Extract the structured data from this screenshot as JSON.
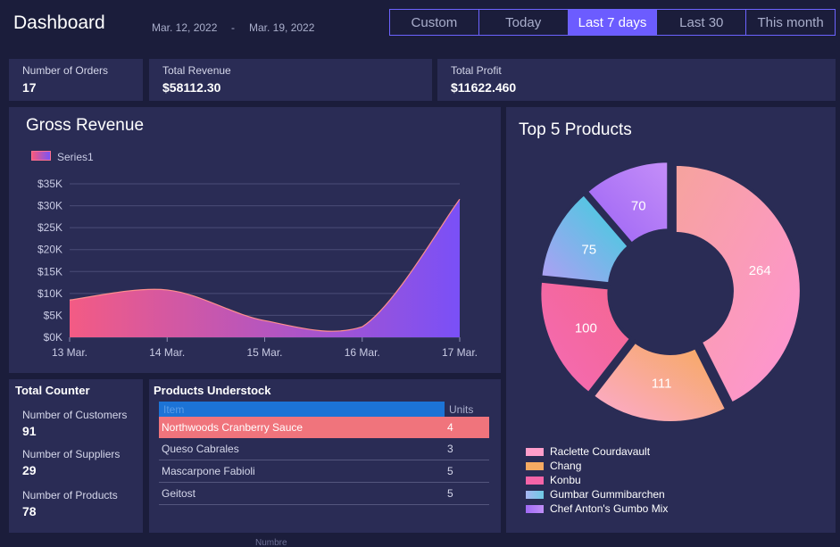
{
  "header": {
    "title": "Dashboard",
    "date_from": "Mar. 12, 2022",
    "date_sep": "-",
    "date_to": "Mar. 19, 2022",
    "ranges": [
      {
        "label": "Custom",
        "active": false
      },
      {
        "label": "Today",
        "active": false
      },
      {
        "label": "Last 7 days",
        "active": true
      },
      {
        "label": "Last 30",
        "active": false
      },
      {
        "label": "This month",
        "active": false
      }
    ]
  },
  "kpis": {
    "orders": {
      "label": "Number of Orders",
      "value": "17"
    },
    "revenue": {
      "label": "Total Revenue",
      "value": "$58112.30"
    },
    "profit": {
      "label": "Total Profit",
      "value": "$11622.460"
    }
  },
  "gross_revenue": {
    "title": "Gross Revenue",
    "chart_data": {
      "type": "area",
      "series": [
        {
          "name": "Series1",
          "values": [
            8500,
            10800,
            3800,
            2400,
            31500
          ]
        }
      ],
      "categories": [
        "13 Mar.",
        "14 Mar.",
        "15 Mar.",
        "16 Mar.",
        "17 Mar."
      ],
      "y_ticks": [
        "$0K",
        "$5K",
        "$10K",
        "$15K",
        "$20K",
        "$25K",
        "$30K",
        "$35K"
      ],
      "ylim": [
        0,
        35000
      ],
      "legend": "top-left",
      "grid": true
    }
  },
  "top_products": {
    "title": "Top 5 Products",
    "chart_data": {
      "type": "pie",
      "categories": [
        "Raclette Courdavault",
        "Chang",
        "Konbu",
        "Gumbar Gummibarchen",
        "Chef Anton's Gumbo Mix"
      ],
      "values": [
        264,
        111,
        100,
        75,
        70
      ],
      "legend": "bottom-left"
    }
  },
  "total_counter": {
    "title": "Total Counter",
    "items": [
      {
        "label": "Number of Customers",
        "value": "91"
      },
      {
        "label": "Number of Suppliers",
        "value": "29"
      },
      {
        "label": "Number of Products",
        "value": "78"
      }
    ]
  },
  "understock": {
    "title": "Products Understock",
    "columns": [
      "Item",
      "Units"
    ],
    "rows": [
      {
        "item": "Northwoods Cranberry Sauce",
        "units": "4"
      },
      {
        "item": "Queso Cabrales",
        "units": "3"
      },
      {
        "item": "Mascarpone Fabioli",
        "units": "5"
      },
      {
        "item": "Geitost",
        "units": "5"
      }
    ]
  },
  "footer_fragment": "Numbre"
}
